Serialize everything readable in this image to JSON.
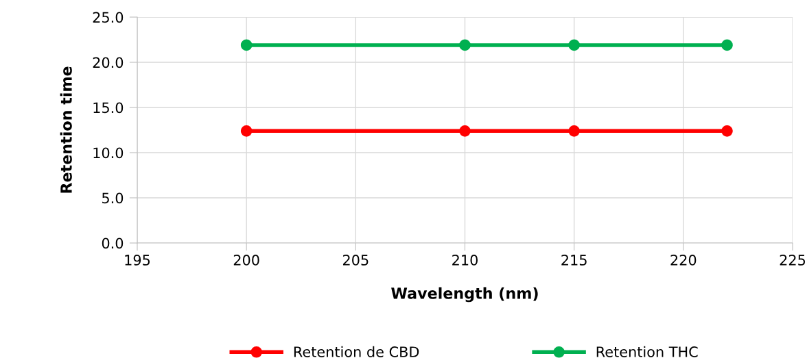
{
  "chart_data": {
    "type": "line",
    "xlabel": "Wavelength (nm)",
    "ylabel": "Retention time",
    "x": [
      200,
      210,
      215,
      222
    ],
    "series": [
      {
        "name": "Retention de CBD",
        "color": "#ff0000",
        "values": [
          12.4,
          12.4,
          12.4,
          12.4
        ]
      },
      {
        "name": "Retention THC",
        "color": "#00b050",
        "values": [
          21.9,
          21.9,
          21.9,
          21.9
        ]
      }
    ],
    "xlim": [
      195,
      225
    ],
    "xticks": [
      195,
      200,
      205,
      210,
      215,
      220,
      225
    ],
    "ylim": [
      0,
      25
    ],
    "yticks": [
      {
        "value": 0,
        "label": "0.0"
      },
      {
        "value": 5,
        "label": "5.0"
      },
      {
        "value": 10,
        "label": "10.0"
      },
      {
        "value": 15,
        "label": "15.0"
      },
      {
        "value": 20,
        "label": "20.0"
      },
      {
        "value": 25,
        "label": "25.0"
      }
    ],
    "grid": true,
    "legend": "bottom",
    "marker": "circle",
    "line_style": "solid"
  }
}
